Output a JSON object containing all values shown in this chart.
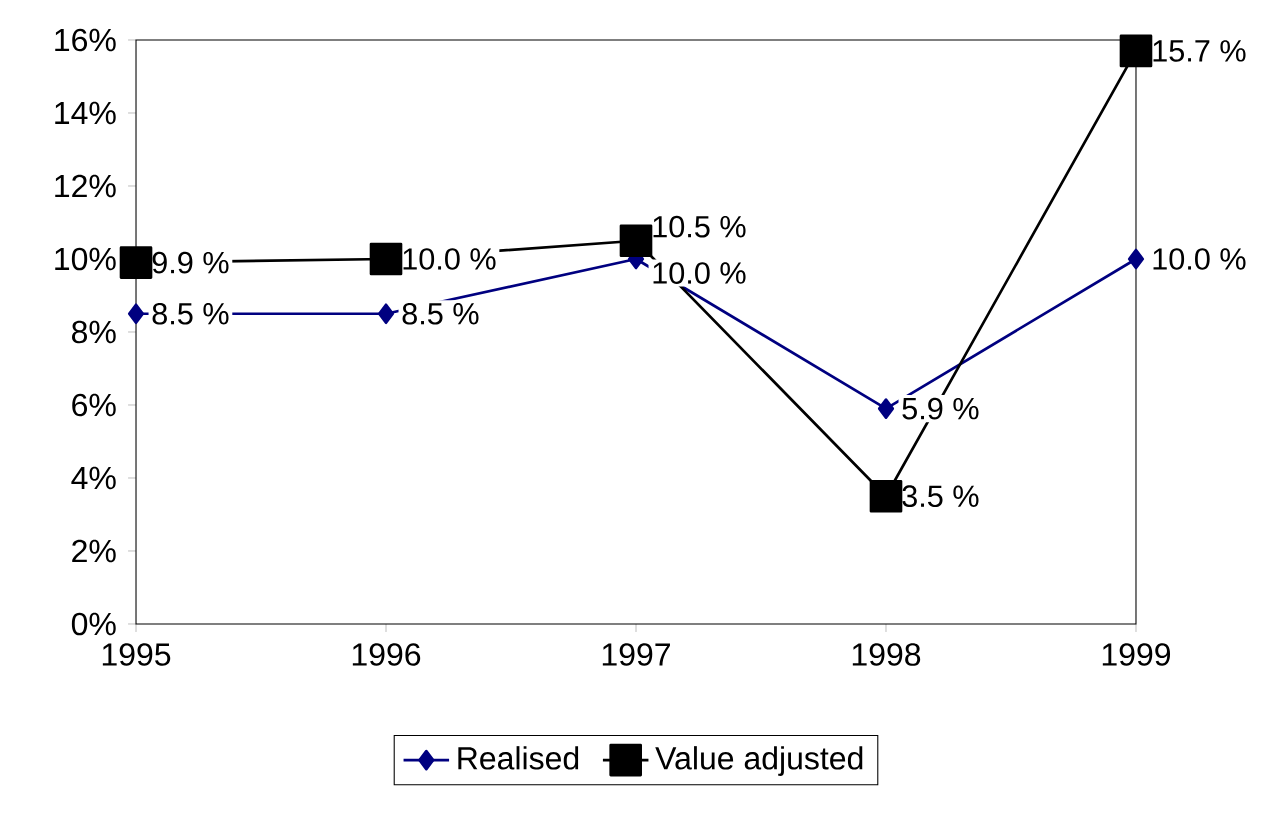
{
  "chart_data": {
    "type": "line",
    "x": [
      1995,
      1996,
      1997,
      1998,
      1999
    ],
    "series": [
      {
        "name": "Realised",
        "color": "#000080",
        "marker": "diamond",
        "values": [
          8.5,
          8.5,
          10.0,
          5.9,
          10.0
        ],
        "value_labels": [
          "8.5 %",
          "8.5 %",
          "10.0 %",
          "5.9 %",
          "10.0 %"
        ]
      },
      {
        "name": "Value adjusted",
        "color": "#000000",
        "marker": "square",
        "values": [
          9.9,
          10.0,
          10.5,
          3.5,
          15.7
        ],
        "value_labels": [
          "9.9 %",
          "10.0 %",
          "10.5 %",
          "3.5 %",
          "15.7 %"
        ]
      }
    ],
    "xlim": [
      1995,
      1999
    ],
    "xticks": [
      1995,
      1996,
      1997,
      1998,
      1999
    ],
    "ylim": [
      0,
      16
    ],
    "yticks": [
      {
        "value": 0,
        "label": "0%"
      },
      {
        "value": 2,
        "label": "2%"
      },
      {
        "value": 4,
        "label": "4%"
      },
      {
        "value": 6,
        "label": "6%"
      },
      {
        "value": 8,
        "label": "8%"
      },
      {
        "value": 10,
        "label": "10%"
      },
      {
        "value": 12,
        "label": "12%"
      },
      {
        "value": 14,
        "label": "14%"
      },
      {
        "value": 16,
        "label": "16%"
      }
    ],
    "grid": false,
    "legend": "bottom",
    "line_style": "solid"
  }
}
